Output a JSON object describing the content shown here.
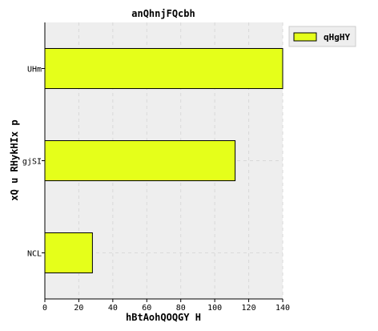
{
  "chart_data": {
    "type": "bar",
    "orientation": "horizontal",
    "title": "anQhnjFQcbh",
    "xlabel": "hBtAohQOQGY  H",
    "ylabel": "xQ u RHykHIx p",
    "categories": [
      "UHm",
      "gjSI",
      "NCL"
    ],
    "series": [
      {
        "name": "qHgHY",
        "values": [
          140,
          112,
          28
        ]
      }
    ],
    "xlim": [
      0,
      140
    ],
    "xticks": [
      0,
      20,
      40,
      60,
      80,
      100,
      120,
      140
    ],
    "grid": true,
    "legend_position": "top-right-outside",
    "colors": {
      "bar": "#e5ff1a",
      "bar_edge": "#000000",
      "plot_background": "#eeeeee",
      "grid": "#d9d9d9"
    }
  }
}
